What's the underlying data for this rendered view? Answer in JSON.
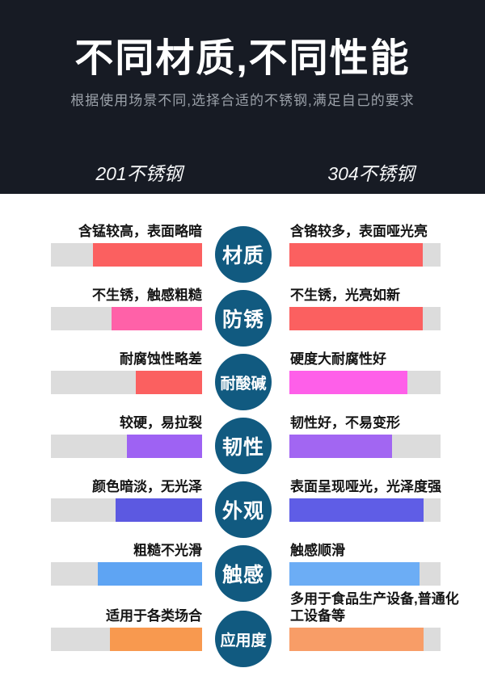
{
  "header": {
    "title": "不同材质,不同性能",
    "subtitle": "根据使用场景不同,选择合适的不锈钢,满足自己的要求",
    "left_column_label": "201不锈钢",
    "right_column_label": "304不锈钢",
    "bg_color": "#171b24",
    "title_color": "#ffffff",
    "subtitle_color": "#9ba1a9"
  },
  "comparison": {
    "track_color": "#dcdcdc",
    "badge_color": "#115a80",
    "rows": [
      {
        "category": "材质",
        "left": {
          "label": "含锰较高，表面略暗",
          "value_pct": 72,
          "color": "#fb6060"
        },
        "right": {
          "label": "含铬较多，表面哑光亮",
          "value_pct": 88,
          "color": "#fb6060"
        }
      },
      {
        "category": "防锈",
        "left": {
          "label": "不生锈，触感粗糙",
          "value_pct": 60,
          "color": "#ff61a8"
        },
        "right": {
          "label": "不生锈，光亮如新",
          "value_pct": 88,
          "color": "#fb6060"
        }
      },
      {
        "category": "耐酸碱",
        "left": {
          "label": "耐腐蚀性略差",
          "value_pct": 44,
          "color": "#fb6060"
        },
        "right": {
          "label": "硬度大耐腐性好",
          "value_pct": 78,
          "color": "#fe5fe9"
        }
      },
      {
        "category": "韧性",
        "left": {
          "label": "较硬，易拉裂",
          "value_pct": 50,
          "color": "#9e62f3"
        },
        "right": {
          "label": "韧性好，不易变形",
          "value_pct": 68,
          "color": "#a266f2"
        }
      },
      {
        "category": "外观",
        "left": {
          "label": "颜色暗淡，无光泽",
          "value_pct": 57,
          "color": "#5c59e1"
        },
        "right": {
          "label": "表面呈现哑光，光泽度强",
          "value_pct": 89,
          "color": "#5f5de6"
        }
      },
      {
        "category": "触感",
        "left": {
          "label": "粗糙不光滑",
          "value_pct": 69,
          "color": "#5ea4f3"
        },
        "right": {
          "label": "触感顺滑",
          "value_pct": 86,
          "color": "#6cadf5"
        }
      },
      {
        "category": "应用度",
        "left": {
          "label": "适用于各类场合",
          "value_pct": 61,
          "color": "#f8994f"
        },
        "right": {
          "label": "多用于食品生产设备,普通化工设备等",
          "value_pct": 89,
          "color": "#f89d67"
        }
      }
    ]
  },
  "chart_data": {
    "type": "bar",
    "title": "不同材质,不同性能",
    "subtitle": "根据使用场景不同,选择合适的不锈钢,满足自己的要求",
    "categories": [
      "材质",
      "防锈",
      "耐酸碱",
      "韧性",
      "外观",
      "触感",
      "应用度"
    ],
    "series": [
      {
        "name": "201不锈钢",
        "values": [
          72,
          60,
          44,
          50,
          57,
          69,
          61
        ],
        "annotations": [
          "含锰较高，表面略暗",
          "不生锈，触感粗糙",
          "耐腐蚀性略差",
          "较硬，易拉裂",
          "颜色暗淡，无光泽",
          "粗糙不光滑",
          "适用于各类场合"
        ]
      },
      {
        "name": "304不锈钢",
        "values": [
          88,
          88,
          78,
          68,
          89,
          86,
          89
        ],
        "annotations": [
          "含铬较多，表面哑光亮",
          "不生锈，光亮如新",
          "硬度大耐腐性好",
          "韧性好，不易变形",
          "表面呈现哑光，光泽度强",
          "触感顺滑",
          "多用于食品生产设备,普通化工设备等"
        ]
      }
    ],
    "value_range": [
      0,
      100
    ],
    "legend_position": "header",
    "grid": false,
    "orientation": "horizontal-mirrored"
  }
}
